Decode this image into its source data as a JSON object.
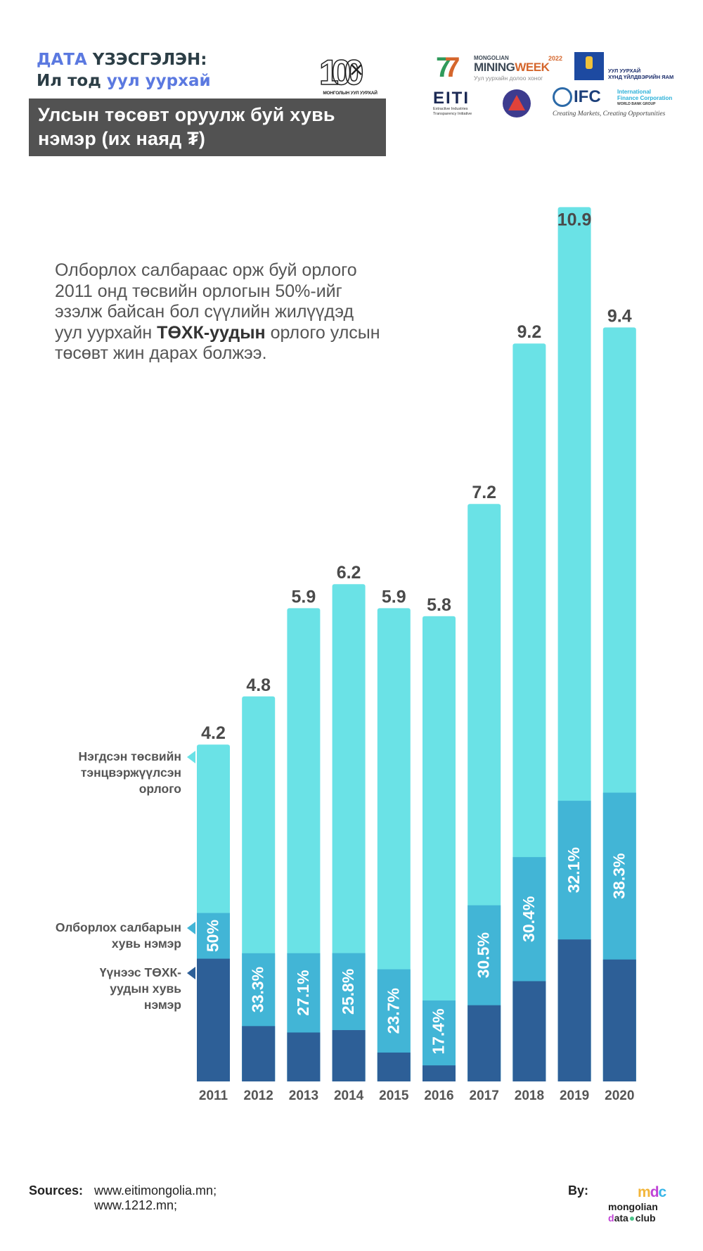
{
  "header": {
    "kicker_line1_accent": "ДАТА",
    "kicker_line1_rest": " ҮЗЭСГЭЛЭН:",
    "kicker_line2_plain": "Ил тод ",
    "kicker_line2_accent": "уул уурхай",
    "title_line1": "Улсын төсөвт оруулж буй хувь",
    "title_line2": "нэмэр (их наяд ₮)",
    "logo_100": {
      "number": "100",
      "caption": "МОНГОЛЫН УУЛ УУРХАЙ"
    },
    "logo_mining_week": {
      "top": "MONGOLIAN",
      "year": "2022",
      "name_a": "MINING",
      "name_b": "WEEK",
      "sub": "Уул уурхайн долоо хоног"
    },
    "logo_ministry": {
      "name_line1": "УУЛ УУРХАЙ",
      "name_line2": "ХҮНД ҮЙЛДВЭРИЙН ЯАМ"
    },
    "logo_eiti": {
      "mark": "EITI",
      "sub_line1": "Extractive Industries",
      "sub_line2": "Transparency Initiative"
    },
    "logo_ifc": {
      "mark": "IFC",
      "name_line1": "International",
      "name_line2": "Finance Corporation",
      "group": "WORLD BANK GROUP",
      "tagline": "Creating Markets, Creating Opportunities"
    }
  },
  "intro": {
    "text_before": "Олборлох салбараас орж буй орлого 2011 онд төсвийн орлогын 50%-ийг эзэлж байсан бол сүүлийн жилүүдэд уул уурхайн ",
    "text_bold": "ТӨХК-уудын",
    "text_after": " орлого улсын төсөвт жин дарах болжээ."
  },
  "legend": [
    {
      "label_lines": [
        "Нэгдсэн төсвийн",
        "тэнцвэржүүлсэн",
        "орлого"
      ],
      "color": "#6ae2e6"
    },
    {
      "label_lines": [
        "Олборлох салбарын",
        "хувь нэмэр"
      ],
      "color": "#42b5d6"
    },
    {
      "label_lines": [
        "Үүнээс ТӨХК-",
        "уудын хувь",
        "нэмэр"
      ],
      "color": "#2d5f97"
    }
  ],
  "chart_data": {
    "type": "bar",
    "stacked": true,
    "title": "Улсын төсөвт оруулж буй хувь нэмэр (их наяд ₮)",
    "xlabel": "",
    "ylabel": "",
    "categories": [
      "2011",
      "2012",
      "2013",
      "2014",
      "2015",
      "2016",
      "2017",
      "2018",
      "2019",
      "2020"
    ],
    "totals": [
      4.2,
      4.8,
      5.9,
      6.2,
      5.9,
      5.8,
      7.2,
      9.2,
      10.9,
      9.4
    ],
    "total_labels": [
      "4.2",
      "4.8",
      "5.9",
      "6.2",
      "5.9",
      "5.8",
      "7.2",
      "9.2",
      "10.9",
      "9.4"
    ],
    "mining_share_pct": [
      50,
      33.3,
      27.1,
      25.8,
      23.7,
      17.4,
      30.5,
      30.4,
      32.1,
      38.3
    ],
    "mining_share_labels": [
      "50%",
      "33.3%",
      "27.1%",
      "25.8%",
      "23.7%",
      "17.4%",
      "30.5%",
      "30.4%",
      "32.1%",
      "38.3%"
    ],
    "soe_contribution_est": [
      1.53,
      0.69,
      0.61,
      0.64,
      0.36,
      0.2,
      0.95,
      1.25,
      1.77,
      1.52
    ],
    "series": [
      {
        "name": "Нэгдсэн төсвийн тэнцвэржүүлсэн орлого",
        "color": "#6ae2e6"
      },
      {
        "name": "Олборлох салбарын хувь нэмэр",
        "color": "#42b5d6"
      },
      {
        "name": "Үүнээс ТӨХК-уудын хувь нэмэр",
        "color": "#2d5f97"
      }
    ],
    "ylim": [
      0,
      11
    ],
    "grid": false,
    "legend_position": "left"
  },
  "footer": {
    "sources_label": "Sources:",
    "sources_line1": "www.eitimongolia.mn;",
    "sources_line2": "www.1212.mn;",
    "by_label": "By:",
    "mdc_mark": "mdc",
    "mdc_line1": "mongolian",
    "mdc_line2_a": "d",
    "mdc_line2_b": "ata",
    "mdc_line2_c": "club"
  }
}
